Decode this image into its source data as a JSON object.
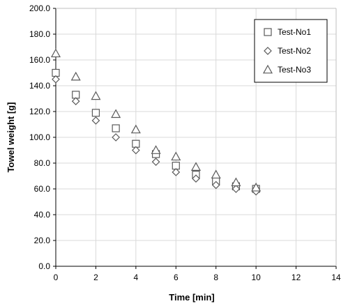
{
  "chart_data": {
    "type": "scatter",
    "xlabel": "Time  [min]",
    "ylabel": "Towel weight  [g]",
    "xlim": [
      0,
      14
    ],
    "ylim": [
      0,
      200
    ],
    "xticks": [
      0,
      2,
      4,
      6,
      8,
      10,
      12,
      14
    ],
    "yticks": [
      0,
      20,
      40,
      60,
      80,
      100,
      120,
      140,
      160,
      180,
      200
    ],
    "xtick_labels": [
      "0",
      "2",
      "4",
      "6",
      "8",
      "10",
      "12",
      "14"
    ],
    "ytick_labels": [
      "0.0",
      "20.0",
      "40.0",
      "60.0",
      "80.0",
      "100.0",
      "120.0",
      "140.0",
      "160.0",
      "180.0",
      "200.0"
    ],
    "grid": true,
    "legend_position": "top-right",
    "series": [
      {
        "name": "Test-No1",
        "marker": "square",
        "x": [
          0,
          1,
          2,
          3,
          4,
          5,
          6,
          7,
          8,
          9,
          10
        ],
        "y": [
          150,
          133,
          119,
          107,
          95,
          87,
          78,
          71,
          66,
          62,
          60
        ]
      },
      {
        "name": "Test-No2",
        "marker": "diamond",
        "x": [
          0,
          1,
          2,
          3,
          4,
          5,
          6,
          7,
          8,
          9,
          10
        ],
        "y": [
          145,
          128,
          113,
          100,
          90,
          81,
          73,
          68,
          63,
          60,
          58
        ]
      },
      {
        "name": "Test-No3",
        "marker": "triangle",
        "x": [
          0,
          1,
          2,
          3,
          4,
          5,
          6,
          7,
          8,
          9,
          10
        ],
        "y": [
          165,
          147,
          132,
          118,
          106,
          90,
          85,
          77,
          71,
          65,
          61
        ]
      }
    ],
    "colors": {
      "marker_stroke": "#595959",
      "grid": "#d9d9d9",
      "axis": "#000000"
    }
  }
}
